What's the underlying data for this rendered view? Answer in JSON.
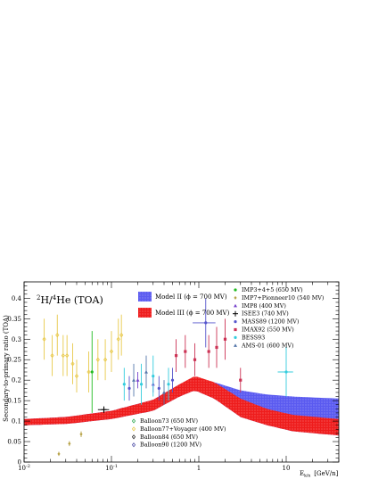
{
  "chart_data": {
    "type": "scatter",
    "title_main": "H/ He (TOA)",
    "title_sup1": "2",
    "title_sup2": "4",
    "xlabel": "E",
    "xlabel_sub": "k/n",
    "xlabel_unit": "[GeV/n]",
    "ylabel": "Secondary-to-primary ratio (TOA)",
    "xscale": "log",
    "xlim": [
      0.01,
      40
    ],
    "ylim": [
      0,
      0.44
    ],
    "x_ticks": [
      {
        "v": 0.01,
        "label": "10",
        "exp": "-2"
      },
      {
        "v": 0.1,
        "label": "10",
        "exp": "-1"
      },
      {
        "v": 1,
        "label": "1",
        "exp": ""
      },
      {
        "v": 10,
        "label": "10",
        "exp": ""
      }
    ],
    "y_ticks": [
      {
        "v": 0,
        "label": "0"
      },
      {
        "v": 0.05,
        "label": "0.05"
      },
      {
        "v": 0.1,
        "label": "0.1"
      },
      {
        "v": 0.15,
        "label": "0.15"
      },
      {
        "v": 0.2,
        "label": "0.2"
      },
      {
        "v": 0.25,
        "label": "0.25"
      },
      {
        "v": 0.3,
        "label": "0.3"
      },
      {
        "v": 0.35,
        "label": "0.35"
      },
      {
        "v": 0.4,
        "label": "0.4"
      }
    ],
    "bands": [
      {
        "name": "Model II (ϕ = 700 MV)",
        "color": "#5a5af0",
        "x": [
          0.01,
          0.03,
          0.1,
          0.3,
          0.6,
          0.9,
          1.5,
          3,
          6,
          12,
          40
        ],
        "low": [
          0.09,
          0.093,
          0.105,
          0.125,
          0.16,
          0.175,
          0.155,
          0.11,
          0.09,
          0.075,
          0.065
        ],
        "high": [
          0.105,
          0.11,
          0.125,
          0.152,
          0.19,
          0.205,
          0.195,
          0.175,
          0.165,
          0.16,
          0.155
        ]
      },
      {
        "name": "Model III (ϕ = 700 MV)",
        "color": "#ee1c1c",
        "x": [
          0.01,
          0.03,
          0.1,
          0.3,
          0.6,
          0.9,
          1.5,
          3,
          6,
          12,
          40
        ],
        "low": [
          0.09,
          0.093,
          0.105,
          0.125,
          0.16,
          0.175,
          0.155,
          0.11,
          0.09,
          0.075,
          0.065
        ],
        "high": [
          0.105,
          0.11,
          0.125,
          0.152,
          0.19,
          0.21,
          0.195,
          0.155,
          0.13,
          0.115,
          0.105
        ]
      }
    ],
    "series": [
      {
        "name": "IMP3+4+5 (650 MV)",
        "color": "#22bb22",
        "marker": "circle",
        "points": [
          {
            "x": 0.06,
            "y": 0.22,
            "yerr": 0.1
          }
        ]
      },
      {
        "name": "IMP7+Pionneer10 (540 MV)",
        "color": "#b8a44a",
        "marker": "diamond",
        "points": [
          {
            "x": 0.025,
            "y": 0.02,
            "yerr": 0.005
          },
          {
            "x": 0.033,
            "y": 0.045,
            "yerr": 0.006
          },
          {
            "x": 0.045,
            "y": 0.068,
            "yerr": 0.007
          }
        ]
      },
      {
        "name": "IMP8 (400 MV)",
        "color": "#7744cc",
        "marker": "triangle",
        "points": [
          {
            "x": 0.2,
            "y": 0.2,
            "yerr": 0.02
          },
          {
            "x": 0.3,
            "y": 0.19,
            "yerr": 0.02
          }
        ]
      },
      {
        "name": "ISEE3 (740 MV)",
        "color": "#000000",
        "marker": "cross",
        "points": [
          {
            "x": 0.082,
            "y": 0.128,
            "yerr": 0.008,
            "xerr": 0.012
          }
        ]
      },
      {
        "name": "MASS89 (1200 MV)",
        "color": "#5555cc",
        "marker": "circle",
        "points": [
          {
            "x": 0.16,
            "y": 0.18,
            "yerr": 0.03
          },
          {
            "x": 0.35,
            "y": 0.18,
            "yerr": 0.03
          },
          {
            "x": 0.5,
            "y": 0.2,
            "yerr": 0.03
          },
          {
            "x": 1.2,
            "y": 0.34,
            "yerr": 0.06,
            "xerr": 0.35
          }
        ]
      },
      {
        "name": "IMAX92 (550 MV)",
        "color": "#cc3355",
        "marker": "square",
        "points": [
          {
            "x": 0.55,
            "y": 0.26,
            "yerr": 0.04
          },
          {
            "x": 0.7,
            "y": 0.27,
            "yerr": 0.04
          },
          {
            "x": 0.9,
            "y": 0.25,
            "yerr": 0.04
          },
          {
            "x": 1.3,
            "y": 0.27,
            "yerr": 0.04
          },
          {
            "x": 1.6,
            "y": 0.28,
            "yerr": 0.05
          },
          {
            "x": 2,
            "y": 0.3,
            "yerr": 0.05
          },
          {
            "x": 3,
            "y": 0.2,
            "yerr": 0.03
          }
        ]
      },
      {
        "name": "BESS93",
        "color": "#33ccdd",
        "marker": "circle",
        "points": [
          {
            "x": 0.14,
            "y": 0.19,
            "yerr": 0.04
          },
          {
            "x": 0.22,
            "y": 0.19,
            "yerr": 0.05
          },
          {
            "x": 0.3,
            "y": 0.21,
            "yerr": 0.05
          },
          {
            "x": 0.45,
            "y": 0.19,
            "yerr": 0.04
          },
          {
            "x": 10,
            "y": 0.22,
            "yerr": 0.06,
            "xerr": 2
          }
        ]
      },
      {
        "name": "AMS-01 (600 MV)",
        "color": "#5577aa",
        "marker": "triangle",
        "points": [
          {
            "x": 0.18,
            "y": 0.2,
            "yerr": 0.04
          },
          {
            "x": 0.25,
            "y": 0.22,
            "yerr": 0.04
          },
          {
            "x": 0.4,
            "y": 0.17,
            "yerr": 0.03
          }
        ]
      },
      {
        "name": "Balloon73 (650 MV)",
        "color": "#33aa55",
        "marker": "diamond-open",
        "points": []
      },
      {
        "name": "Balloon77+Voyager (400 MV)",
        "color": "#e8c94a",
        "marker": "diamond-open",
        "points": [
          {
            "x": 0.017,
            "y": 0.3,
            "yerr": 0.05
          },
          {
            "x": 0.021,
            "y": 0.26,
            "yerr": 0.05
          },
          {
            "x": 0.024,
            "y": 0.31,
            "yerr": 0.05
          },
          {
            "x": 0.028,
            "y": 0.26,
            "yerr": 0.05
          },
          {
            "x": 0.031,
            "y": 0.26,
            "yerr": 0.05
          },
          {
            "x": 0.036,
            "y": 0.24,
            "yerr": 0.05
          },
          {
            "x": 0.04,
            "y": 0.21,
            "yerr": 0.04
          },
          {
            "x": 0.055,
            "y": 0.22,
            "yerr": 0.05
          },
          {
            "x": 0.07,
            "y": 0.25,
            "yerr": 0.05
          },
          {
            "x": 0.085,
            "y": 0.25,
            "yerr": 0.05
          },
          {
            "x": 0.1,
            "y": 0.27,
            "yerr": 0.05
          },
          {
            "x": 0.12,
            "y": 0.3,
            "yerr": 0.05
          },
          {
            "x": 0.13,
            "y": 0.31,
            "yerr": 0.05
          }
        ]
      },
      {
        "name": "Balloon84 (650 MV)",
        "color": "#333333",
        "marker": "diamond-open",
        "points": []
      },
      {
        "name": "Balloon90 (1200 MV)",
        "color": "#5555aa",
        "marker": "diamond-open",
        "points": []
      }
    ],
    "legend_position": "top-right"
  }
}
